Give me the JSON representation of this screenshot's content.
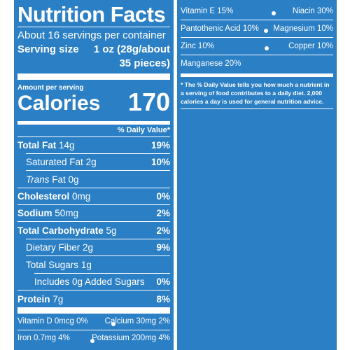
{
  "label": {
    "title": "Nutrition Facts",
    "servings": "About 16 servings per container",
    "serving_size_label": "Serving size",
    "serving_size_value_1": "1 oz (28g/about",
    "serving_size_value_2": "35 pieces)",
    "amount_per_serving": "Amount per serving",
    "calories_label": "Calories",
    "calories_value": "170",
    "dv_header": "% Daily Value*",
    "rows": [
      {
        "name": "Total Fat",
        "amount": "14g",
        "dv": "19%"
      },
      {
        "name": "Saturated Fat",
        "amount": "2g",
        "dv": "10%"
      },
      {
        "name": "Trans",
        "amount": "Fat 0g",
        "dv": ""
      },
      {
        "name": "Cholesterol",
        "amount": "0mg",
        "dv": "0%"
      },
      {
        "name": "Sodium",
        "amount": "50mg",
        "dv": "2%"
      },
      {
        "name": "Total Carbohydrate",
        "amount": "5g",
        "dv": "2%"
      },
      {
        "name": "Dietary Fiber",
        "amount": "2g",
        "dv": "9%"
      },
      {
        "name": "Total Sugars",
        "amount": "1g",
        "dv": ""
      },
      {
        "name": "Includes 0g Added Sugars",
        "amount": "",
        "dv": "0%"
      },
      {
        "name": "Protein",
        "amount": "7g",
        "dv": "8%"
      }
    ],
    "vitamins": [
      {
        "left": "Vitamin D 0mcg 0%",
        "right": "Calcium 30mg 2%"
      },
      {
        "left": "Iron 0.7mg 4%",
        "right": "Potassium 200mg 4%"
      }
    ]
  },
  "right_panel": {
    "nutrients": [
      {
        "left": "Vitamin E 15%",
        "right": "Niacin 30%"
      },
      {
        "left": "Pantothenic Acid 10%",
        "right": "Magnesium 10%"
      },
      {
        "left": "Zinc 10%",
        "right": "Copper 10%"
      },
      {
        "left": "Manganese 20%",
        "right": ""
      }
    ],
    "footnote_line_1": "* The % Daily Value tells you how much a nutrient in",
    "footnote_line_2": "a serving of food contributes to a daily diet. 2,000",
    "footnote_line_3": "calories a day is used for general nutrition advice."
  },
  "colors": {
    "background": "#2b7fc4",
    "text": "#ffffff"
  }
}
